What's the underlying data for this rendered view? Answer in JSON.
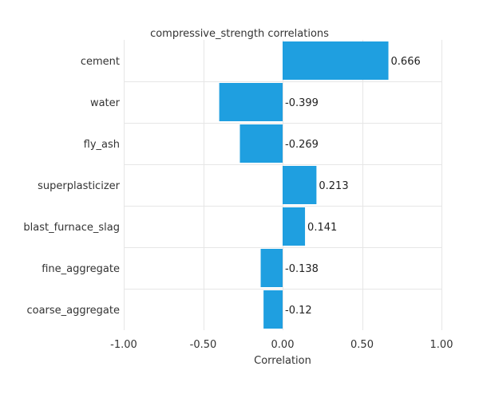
{
  "chart_data": {
    "type": "bar",
    "orientation": "horizontal",
    "title": "compressive_strength correlations",
    "xlabel": "Correlation",
    "ylabel": "",
    "categories": [
      "cement",
      "water",
      "fly_ash",
      "superplasticizer",
      "blast_furnace_slag",
      "fine_aggregate",
      "coarse_aggregate"
    ],
    "values": [
      0.666,
      -0.399,
      -0.269,
      0.213,
      0.141,
      -0.138,
      -0.12
    ],
    "value_labels": [
      "0.666",
      "-0.399",
      "-0.269",
      "0.213",
      "0.141",
      "-0.138",
      "-0.12"
    ],
    "xlim": [
      -1.0,
      1.0
    ],
    "xticks": [
      -1.0,
      -0.5,
      0.0,
      0.5,
      1.0
    ],
    "xtick_labels": [
      "-1.00",
      "-0.50",
      "0.00",
      "0.50",
      "1.00"
    ],
    "grid": true,
    "legend": "none",
    "bar_color": "#1f9fe0",
    "grid_color": "#e6e6e6"
  }
}
